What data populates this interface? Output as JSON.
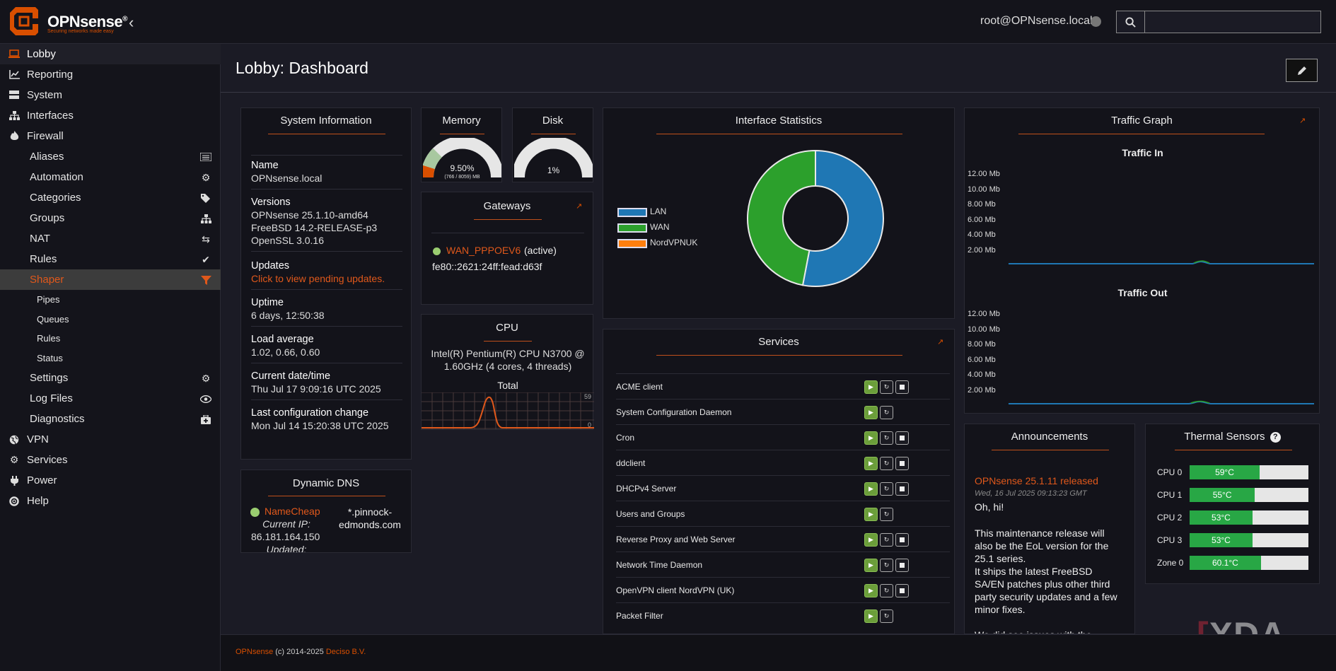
{
  "brand": {
    "name": "OPNsense",
    "mark": "®",
    "tagline": "Securing networks made easy"
  },
  "header": {
    "user": "root@OPNsense.local",
    "search_placeholder": ""
  },
  "sidebar": {
    "items": [
      {
        "label": "Lobby",
        "icon": "laptop-icon"
      },
      {
        "label": "Reporting",
        "icon": "chart-icon"
      },
      {
        "label": "System",
        "icon": "server-icon"
      },
      {
        "label": "Interfaces",
        "icon": "sitemap-icon"
      },
      {
        "label": "Firewall",
        "icon": "fire-icon"
      }
    ],
    "firewall_sub": [
      {
        "label": "Aliases",
        "icon": "list-icon"
      },
      {
        "label": "Automation",
        "icon": "gear-icon"
      },
      {
        "label": "Categories",
        "icon": "tags-icon"
      },
      {
        "label": "Groups",
        "icon": "sitemap-icon"
      },
      {
        "label": "NAT",
        "icon": "exchange-icon"
      },
      {
        "label": "Rules",
        "icon": "check-icon"
      },
      {
        "label": "Shaper",
        "icon": "filter-icon"
      }
    ],
    "shaper_sub": [
      "Pipes",
      "Queues",
      "Rules",
      "Status"
    ],
    "firewall_sub2": [
      {
        "label": "Settings",
        "icon": "gears-icon"
      },
      {
        "label": "Log Files",
        "icon": "eye-icon"
      },
      {
        "label": "Diagnostics",
        "icon": "medkit-icon"
      }
    ],
    "items2": [
      {
        "label": "VPN",
        "icon": "globe-icon"
      },
      {
        "label": "Services",
        "icon": "cog-icon"
      },
      {
        "label": "Power",
        "icon": "plug-icon"
      },
      {
        "label": "Help",
        "icon": "lifebuoy-icon"
      }
    ]
  },
  "page": {
    "title": "Lobby: Dashboard"
  },
  "system_info": {
    "title": "System Information",
    "name_label": "Name",
    "name": "OPNsense.local",
    "versions_label": "Versions",
    "v1": "OPNsense 25.1.10-amd64",
    "v2": "FreeBSD 14.2-RELEASE-p3",
    "v3": "OpenSSL 3.0.16",
    "updates_label": "Updates",
    "updates": "Click to view pending updates.",
    "uptime_label": "Uptime",
    "uptime": "6 days, 12:50:38",
    "load_label": "Load average",
    "load": "1.02, 0.66, 0.60",
    "date_label": "Current date/time",
    "date": "Thu Jul 17 9:09:16 UTC 2025",
    "config_label": "Last configuration change",
    "config": "Mon Jul 14 15:20:38 UTC 2025"
  },
  "memory": {
    "title": "Memory",
    "percent": "9.50%",
    "detail": "(766 / 8059) MB",
    "value": 0.095
  },
  "disk": {
    "title": "Disk",
    "percent": "1%",
    "value": 0.01
  },
  "gateways": {
    "title": "Gateways",
    "name": "WAN_PPPOEV6",
    "status": "(active)",
    "address": "fe80::2621:24ff:fead:d63f"
  },
  "cpu": {
    "title": "CPU",
    "model": "Intel(R) Pentium(R) CPU N3700 @ 1.60GHz (4 cores, 4 threads)",
    "graph_title": "Total",
    "max": "59",
    "min": "0"
  },
  "dyndns": {
    "title": "Dynamic DNS",
    "provider": "NameCheap",
    "host": "*.pinnock-edmonds.com",
    "ip_label": "Current IP:",
    "ip": "86.181.164.150",
    "updated_label": "Updated:"
  },
  "iface_stats": {
    "title": "Interface Statistics",
    "legend": [
      {
        "name": "LAN",
        "color": "#1f77b4"
      },
      {
        "name": "WAN",
        "color": "#2ca02c"
      },
      {
        "name": "NordVPNUK",
        "color": "#ff7f0e"
      }
    ]
  },
  "chart_data": {
    "type": "pie",
    "categories": [
      "LAN",
      "WAN",
      "NordVPNUK"
    ],
    "values": [
      53,
      47,
      0
    ],
    "colors": [
      "#1f77b4",
      "#2ca02c",
      "#ff7f0e"
    ]
  },
  "traffic": {
    "title": "Traffic Graph",
    "in_title": "Traffic In",
    "out_title": "Traffic Out",
    "ticks": [
      "12.00 Mb",
      "10.00 Mb",
      "8.00 Mb",
      "6.00 Mb",
      "4.00 Mb",
      "2.00 Mb"
    ]
  },
  "services": {
    "title": "Services",
    "rows": [
      {
        "name": "ACME client",
        "stop": true
      },
      {
        "name": "System Configuration Daemon",
        "stop": false
      },
      {
        "name": "Cron",
        "stop": true
      },
      {
        "name": "ddclient",
        "stop": true
      },
      {
        "name": "DHCPv4 Server",
        "stop": true
      },
      {
        "name": "Users and Groups",
        "stop": false
      },
      {
        "name": "Reverse Proxy and Web Server",
        "stop": true
      },
      {
        "name": "Network Time Daemon",
        "stop": true
      },
      {
        "name": "OpenVPN client NordVPN (UK)",
        "stop": true
      },
      {
        "name": "Packet Filter",
        "stop": false
      }
    ]
  },
  "announcements": {
    "title": "Announcements",
    "headline": "OPNsense 25.1.11 released",
    "date": "Wed, 16 Jul 2025 09:13:23 GMT",
    "greeting": "Oh, hi!",
    "p1": "This maintenance release will also be the EoL version for the 25.1 series.",
    "p2": "It ships the latest FreeBSD SA/EN patches plus other third party security updates and a few minor fixes.",
    "p3": "We did see issues with the"
  },
  "thermal": {
    "title": "Thermal Sensors",
    "rows": [
      {
        "label": "CPU 0",
        "value": "59°C",
        "fill": 0.59
      },
      {
        "label": "CPU 1",
        "value": "55°C",
        "fill": 0.55
      },
      {
        "label": "CPU 2",
        "value": "53°C",
        "fill": 0.53
      },
      {
        "label": "CPU 3",
        "value": "53°C",
        "fill": 0.53
      },
      {
        "label": "Zone 0",
        "value": "60.1°C",
        "fill": 0.601
      }
    ]
  },
  "footer": {
    "product": "OPNsense",
    "copy": " (c) 2014-2025 ",
    "vendor": "Deciso B.V."
  },
  "watermark": "XDA"
}
